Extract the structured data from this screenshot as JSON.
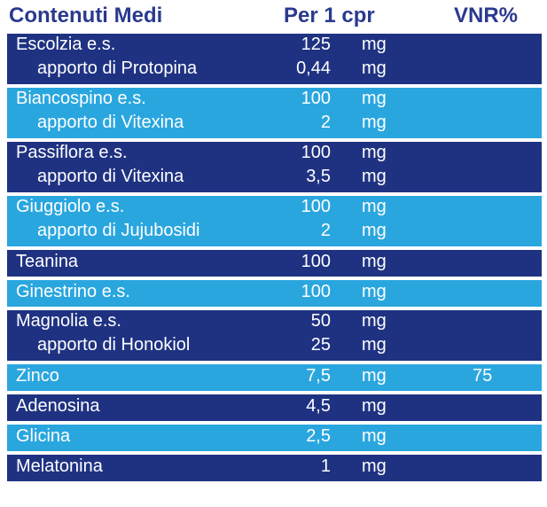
{
  "header": {
    "col_name": "Contenuti Medi",
    "col_qty": "Per 1 cpr",
    "col_vnr": "VNR%"
  },
  "rows": [
    {
      "style": "dark",
      "lines": [
        {
          "name": "Escolzia e.s.",
          "qty": "125",
          "unit": "mg"
        },
        {
          "name": "apporto di Protopina",
          "qty": "0,44",
          "unit": "mg"
        }
      ]
    },
    {
      "style": "light",
      "lines": [
        {
          "name": "Biancospino e.s.",
          "qty": "100",
          "unit": "mg"
        },
        {
          "name": "apporto di Vitexina",
          "qty": "2",
          "unit": "mg"
        }
      ]
    },
    {
      "style": "dark",
      "lines": [
        {
          "name": "Passiflora e.s.",
          "qty": "100",
          "unit": "mg"
        },
        {
          "name": "apporto di Vitexina",
          "qty": "3,5",
          "unit": "mg"
        }
      ]
    },
    {
      "style": "light",
      "lines": [
        {
          "name": "Giuggiolo e.s.",
          "qty": "100",
          "unit": "mg"
        },
        {
          "name": "apporto di Jujubosidi",
          "qty": "2",
          "unit": "mg"
        }
      ]
    },
    {
      "style": "dark",
      "lines": [
        {
          "name": "Teanina",
          "qty": "100",
          "unit": "mg"
        }
      ]
    },
    {
      "style": "light",
      "lines": [
        {
          "name": "Ginestrino e.s.",
          "qty": "100",
          "unit": "mg"
        }
      ]
    },
    {
      "style": "dark",
      "lines": [
        {
          "name": "Magnolia e.s.",
          "qty": "50",
          "unit": "mg"
        },
        {
          "name": "apporto di Honokiol",
          "qty": "25",
          "unit": "mg"
        }
      ]
    },
    {
      "style": "light",
      "lines": [
        {
          "name": "Zinco",
          "qty": "7,5",
          "unit": "mg",
          "vnr": "75"
        }
      ]
    },
    {
      "style": "dark",
      "lines": [
        {
          "name": "Adenosina",
          "qty": "4,5",
          "unit": "mg"
        }
      ]
    },
    {
      "style": "light",
      "lines": [
        {
          "name": "Glicina",
          "qty": "2,5",
          "unit": "mg"
        }
      ]
    },
    {
      "style": "dark",
      "lines": [
        {
          "name": "Melatonina",
          "qty": "1",
          "unit": "mg"
        }
      ]
    }
  ],
  "colors": {
    "header_text": "#2a3a8e",
    "row_dark": "#1f3282",
    "row_light": "#2aa6df",
    "row_text": "#ffffff"
  }
}
